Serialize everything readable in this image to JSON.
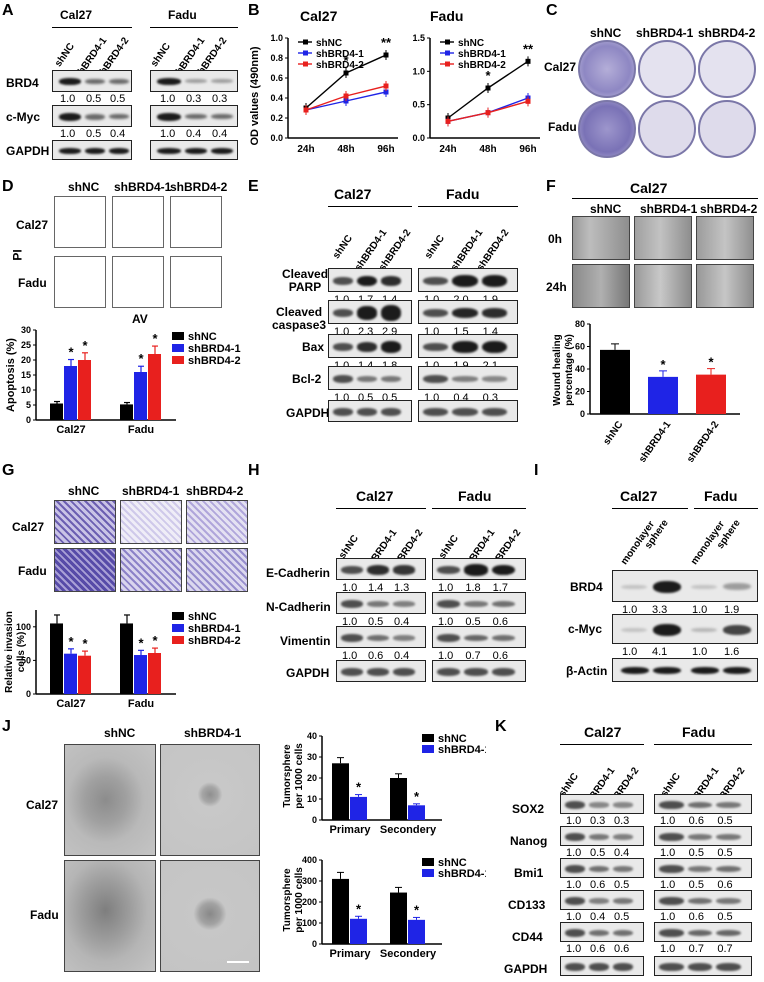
{
  "panels": [
    "A",
    "B",
    "C",
    "D",
    "E",
    "F",
    "G",
    "H",
    "I",
    "J",
    "K"
  ],
  "cells": {
    "cal27": "Cal27",
    "fadu": "Fadu"
  },
  "groups": {
    "shnc": "shNC",
    "sh1": "shBRD4-1",
    "sh2": "shBRD4-2"
  },
  "colors": {
    "shnc": "#000000",
    "sh1": "#1f24e6",
    "sh2": "#e8201e"
  },
  "A": {
    "rows": [
      "BRD4",
      "c-Myc",
      "GAPDH"
    ],
    "brd4_cal27": [
      "1.0",
      "0.5",
      "0.5"
    ],
    "brd4_fadu": [
      "1.0",
      "0.3",
      "0.3"
    ],
    "cmyc_cal27": [
      "1.0",
      "0.5",
      "0.4"
    ],
    "cmyc_fadu": [
      "1.0",
      "0.4",
      "0.4"
    ]
  },
  "B": {
    "ylabel": "OD values (490nm)",
    "xticks": [
      "24h",
      "48h",
      "96h"
    ],
    "yticks": [
      "0.0",
      "0.2",
      "0.4",
      "0.6",
      "0.8",
      "1.0"
    ],
    "yticks2": [
      "0.0",
      "0.5",
      "1.0",
      "1.5"
    ],
    "sig1": "*",
    "sig2": "**"
  },
  "C": {},
  "D": {
    "xlabel": "AV",
    "ylabel": "PI",
    "chart_ylabel": "Apoptosis (%)",
    "yticks": [
      "0",
      "5",
      "10",
      "15",
      "20",
      "25",
      "30"
    ],
    "sig": "*"
  },
  "E": {
    "rows": [
      "Cleaved\nPARP",
      "Cleaved\ncaspase3",
      "Bax",
      "Bcl-2",
      "GAPDH"
    ],
    "row1": "Cleaved",
    "row1b": "PARP",
    "row2": "Cleaved",
    "row2b": "caspase3",
    "row3": "Bax",
    "row4": "Bcl-2",
    "row5": "GAPDH",
    "parp_cal27": [
      "1.0",
      "1.7",
      "1.4"
    ],
    "parp_fadu": [
      "1.0",
      "2.0",
      "1.9"
    ],
    "casp_cal27": [
      "1.0",
      "2.3",
      "2.9"
    ],
    "casp_fadu": [
      "1.0",
      "1.5",
      "1.4"
    ],
    "bax_cal27": [
      "1.0",
      "1.4",
      "1.8"
    ],
    "bax_fadu": [
      "1.0",
      "1.9",
      "2.1"
    ],
    "bcl_cal27": [
      "1.0",
      "0.5",
      "0.5"
    ],
    "bcl_fadu": [
      "1.0",
      "0.4",
      "0.3"
    ]
  },
  "F": {
    "times": [
      "0h",
      "24h"
    ],
    "ylabel": "Wound healing percentage (%)",
    "ylabel1": "Wound healing",
    "ylabel2": "percentage (%)",
    "yticks": [
      "0",
      "20",
      "40",
      "60",
      "80"
    ],
    "sig": "*"
  },
  "G": {
    "ylabel": "Relative invasion cells (%)",
    "ylabel1": "Relative invasion",
    "ylabel2": "cells (%)",
    "yticks": [
      "0",
      "50",
      "100"
    ],
    "sig": "*"
  },
  "H": {
    "rows": [
      "E-Cadherin",
      "N-Cadherin",
      "Vimentin",
      "GAPDH"
    ],
    "ecad_cal27": [
      "1.0",
      "1.4",
      "1.3"
    ],
    "ecad_fadu": [
      "1.0",
      "1.8",
      "1.7"
    ],
    "ncad_cal27": [
      "1.0",
      "0.5",
      "0.4"
    ],
    "ncad_fadu": [
      "1.0",
      "0.5",
      "0.6"
    ],
    "vim_cal27": [
      "1.0",
      "0.6",
      "0.4"
    ],
    "vim_fadu": [
      "1.0",
      "0.7",
      "0.6"
    ]
  },
  "I": {
    "cols": [
      "monolayer",
      "sphere",
      "monolayer",
      "sphere"
    ],
    "rows": [
      "BRD4",
      "c-Myc",
      "β-Actin"
    ],
    "brd4": [
      "1.0",
      "3.3",
      "1.0",
      "1.9"
    ],
    "cmyc": [
      "1.0",
      "4.1",
      "1.0",
      "1.6"
    ]
  },
  "J": {
    "ylabel1": "Tumorsphere",
    "ylabel2": "per 1000 cells",
    "xticks": [
      "Primary",
      "Secondery"
    ],
    "yticks1": [
      "0",
      "10",
      "20",
      "30",
      "40"
    ],
    "yticks2": [
      "0",
      "100",
      "200",
      "300",
      "400"
    ],
    "sig": "*"
  },
  "K": {
    "rows": [
      "SOX2",
      "Nanog",
      "Bmi1",
      "CD133",
      "CD44",
      "GAPDH"
    ],
    "sox2_cal27": [
      "1.0",
      "0.3",
      "0.3"
    ],
    "sox2_fadu": [
      "1.0",
      "0.6",
      "0.5"
    ],
    "nanog_cal27": [
      "1.0",
      "0.5",
      "0.4"
    ],
    "nanog_fadu": [
      "1.0",
      "0.5",
      "0.5"
    ],
    "bmi1_cal27": [
      "1.0",
      "0.6",
      "0.5"
    ],
    "bmi1_fadu": [
      "1.0",
      "0.5",
      "0.6"
    ],
    "cd133_cal27": [
      "1.0",
      "0.4",
      "0.5"
    ],
    "cd133_fadu": [
      "1.0",
      "0.6",
      "0.5"
    ],
    "cd44_cal27": [
      "1.0",
      "0.6",
      "0.6"
    ],
    "cd44_fadu": [
      "1.0",
      "0.7",
      "0.7"
    ]
  },
  "chart_data": [
    {
      "type": "line",
      "panel": "B",
      "cell": "Cal27",
      "x": [
        "24h",
        "48h",
        "96h"
      ],
      "ylim": [
        0,
        1.0
      ],
      "series": [
        {
          "name": "shNC",
          "values": [
            0.3,
            0.65,
            0.83
          ]
        },
        {
          "name": "shBRD4-1",
          "values": [
            0.28,
            0.37,
            0.46
          ]
        },
        {
          "name": "shBRD4-2",
          "values": [
            0.28,
            0.42,
            0.52
          ]
        }
      ]
    },
    {
      "type": "line",
      "panel": "B",
      "cell": "Fadu",
      "x": [
        "24h",
        "48h",
        "96h"
      ],
      "ylim": [
        0,
        1.5
      ],
      "series": [
        {
          "name": "shNC",
          "values": [
            0.3,
            0.75,
            1.15
          ]
        },
        {
          "name": "shBRD4-1",
          "values": [
            0.25,
            0.38,
            0.6
          ]
        },
        {
          "name": "shBRD4-2",
          "values": [
            0.25,
            0.38,
            0.55
          ]
        }
      ]
    },
    {
      "type": "bar",
      "panel": "D",
      "categories": [
        "Cal27",
        "Fadu"
      ],
      "ylim": [
        0,
        30
      ],
      "series": [
        {
          "name": "shNC",
          "values": [
            5.5,
            5.2
          ]
        },
        {
          "name": "shBRD4-1",
          "values": [
            18,
            16
          ]
        },
        {
          "name": "shBRD4-2",
          "values": [
            20,
            22
          ]
        }
      ]
    },
    {
      "type": "bar",
      "panel": "F",
      "categories": [
        "shNC",
        "shBRD4-1",
        "shBRD4-2"
      ],
      "ylim": [
        0,
        80
      ],
      "values": [
        57,
        33,
        35
      ]
    },
    {
      "type": "bar",
      "panel": "G",
      "categories": [
        "Cal27",
        "Fadu"
      ],
      "ylim": [
        0,
        125
      ],
      "series": [
        {
          "name": "shNC",
          "values": [
            105,
            105
          ]
        },
        {
          "name": "shBRD4-1",
          "values": [
            60,
            58
          ]
        },
        {
          "name": "shBRD4-2",
          "values": [
            57,
            61
          ]
        }
      ]
    },
    {
      "type": "bar",
      "panel": "J",
      "cell": "Cal27",
      "categories": [
        "Primary",
        "Secondery"
      ],
      "ylim": [
        0,
        40
      ],
      "series": [
        {
          "name": "shNC",
          "values": [
            27,
            20
          ]
        },
        {
          "name": "shBRD4-1",
          "values": [
            11,
            7
          ]
        }
      ]
    },
    {
      "type": "bar",
      "panel": "J",
      "cell": "Fadu",
      "categories": [
        "Primary",
        "Secondery"
      ],
      "ylim": [
        0,
        400
      ],
      "series": [
        {
          "name": "shNC",
          "values": [
            310,
            245
          ]
        },
        {
          "name": "shBRD4-1",
          "values": [
            120,
            115
          ]
        }
      ]
    }
  ]
}
